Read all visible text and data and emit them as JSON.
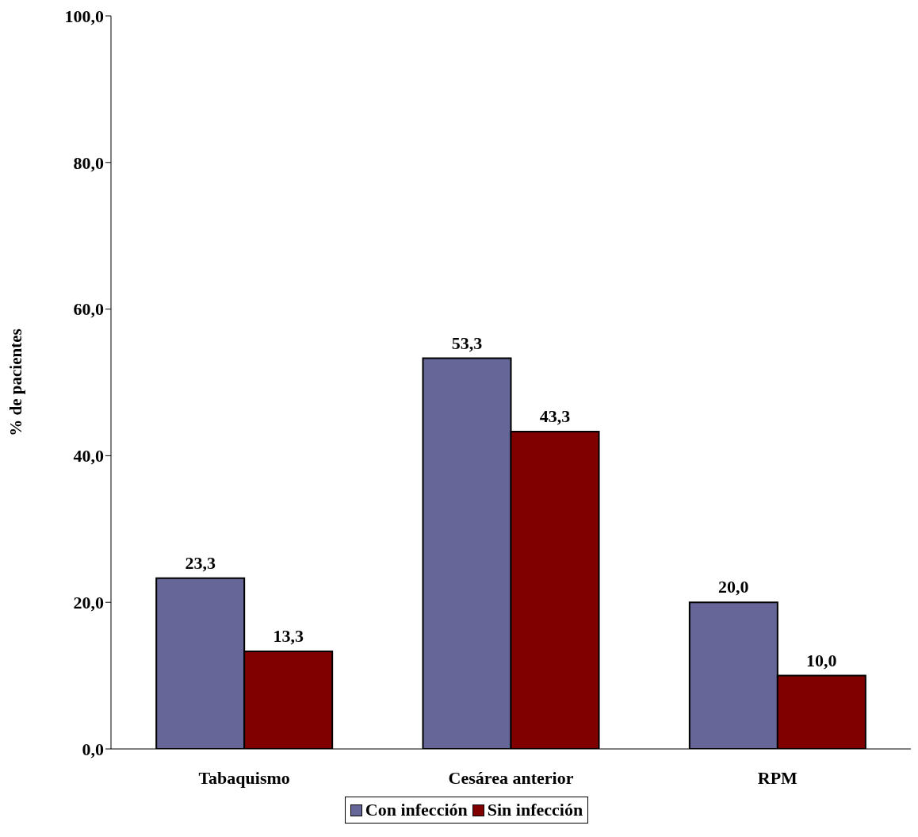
{
  "chart_data": {
    "type": "bar",
    "ylabel": "% de pacientes",
    "categories": [
      "Tabaquismo",
      "Cesárea anterior",
      "RPM"
    ],
    "series": [
      {
        "name": "Con infección",
        "color": "#666699",
        "values": [
          23.3,
          53.3,
          20.0
        ],
        "value_labels": [
          "23,3",
          "53,3",
          "20,0"
        ]
      },
      {
        "name": "Sin infección",
        "color": "#800000",
        "values": [
          13.3,
          43.3,
          10.0
        ],
        "value_labels": [
          "13,3",
          "43,3",
          "10,0"
        ]
      }
    ],
    "ylim": [
      0,
      100
    ],
    "yticks": [
      {
        "value": 0,
        "label": "0,0"
      },
      {
        "value": 20,
        "label": "20,0"
      },
      {
        "value": 40,
        "label": "40,0"
      },
      {
        "value": 60,
        "label": "60,0"
      },
      {
        "value": 80,
        "label": "80,0"
      },
      {
        "value": 100,
        "label": "100,0"
      }
    ],
    "grid": false,
    "legend": "bottom"
  }
}
